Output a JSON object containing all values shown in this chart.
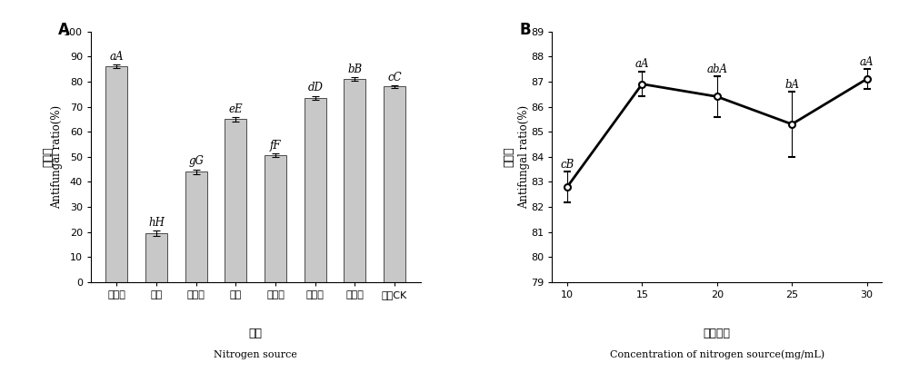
{
  "A": {
    "categories": [
      "黄豆粉",
      "尿素",
      "硝酸鑷",
      "鱼粉",
      "花生粉",
      "玉米粉",
      "菜杆粉",
      "对照CK"
    ],
    "values": [
      86.0,
      19.5,
      44.0,
      65.0,
      50.5,
      73.5,
      81.0,
      78.0
    ],
    "errors": [
      0.8,
      1.2,
      1.0,
      0.8,
      0.7,
      0.8,
      0.8,
      0.5
    ],
    "labels": [
      "aA",
      "hH",
      "gG",
      "eE",
      "fF",
      "dD",
      "bB",
      "cC"
    ],
    "ylim": [
      0,
      100
    ],
    "yticks": [
      0,
      10,
      20,
      30,
      40,
      50,
      60,
      70,
      80,
      90,
      100
    ],
    "ylabel_cn": "抑菌率",
    "ylabel_en": "Antifungal ratio(%)",
    "xlabel_cn": "氮源",
    "xlabel_en": "Nitrogen source",
    "panel_label": "A"
  },
  "B": {
    "x": [
      10,
      15,
      20,
      25,
      30
    ],
    "values": [
      82.8,
      86.9,
      86.4,
      85.3,
      87.1
    ],
    "errors": [
      0.6,
      0.5,
      0.8,
      1.3,
      0.4
    ],
    "labels": [
      "cB",
      "aA",
      "abA",
      "bA",
      "aA"
    ],
    "ylim": [
      79,
      89
    ],
    "yticks": [
      79,
      80,
      81,
      82,
      83,
      84,
      85,
      86,
      87,
      88,
      89
    ],
    "ylabel_cn": "抑菌率",
    "ylabel_en": "Antifungal ratio(%)",
    "xlabel_cn": "氮源浓度",
    "xlabel_en": "Concentration of nitrogen source(mg/mL)",
    "panel_label": "B"
  },
  "hatch_pattern": "~",
  "bar_facecolor": "#c8c8c8",
  "bar_edge_color": "#333333",
  "line_color": "#000000",
  "marker": "o",
  "marker_size": 5,
  "font_size_label": 8.5,
  "font_size_tick": 8,
  "font_size_panel": 12,
  "font_size_annot": 8.5,
  "font_size_xlabel_cn": 9,
  "font_size_xlabel_en": 8
}
